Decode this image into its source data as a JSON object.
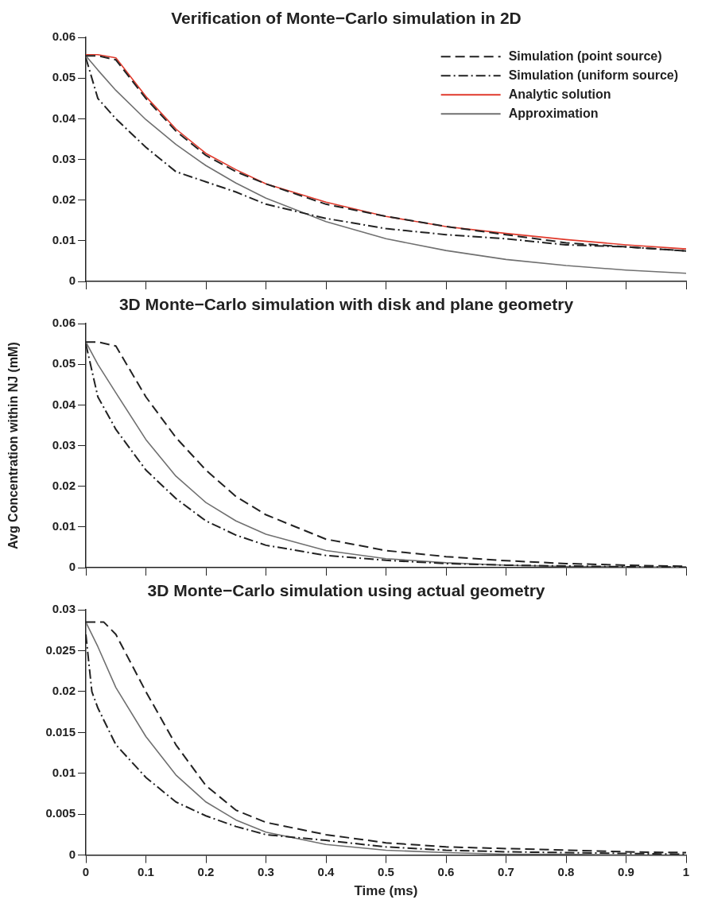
{
  "chart_data": [
    {
      "type": "line",
      "title": "Verification of Monte−Carlo simulation in 2D",
      "xlim": [
        0,
        1
      ],
      "xticks": [
        0,
        0.1,
        0.2,
        0.3,
        0.4,
        0.5,
        0.6,
        0.7,
        0.8,
        0.9,
        1
      ],
      "ylim": [
        0,
        0.06
      ],
      "yticks": [
        0,
        0.01,
        0.02,
        0.03,
        0.04,
        0.05,
        0.06
      ],
      "tick_labels": "y",
      "grid": false,
      "legend": "top right",
      "marker": "none",
      "series": [
        {
          "name": "Simulation (point source)",
          "color": "#222222",
          "line_style": "dashed",
          "x": [
            0,
            0.02,
            0.05,
            0.1,
            0.15,
            0.2,
            0.25,
            0.3,
            0.4,
            0.5,
            0.6,
            0.7,
            0.8,
            0.9,
            1
          ],
          "values": [
            0.0555,
            0.0555,
            0.0545,
            0.045,
            0.037,
            0.031,
            0.027,
            0.024,
            0.019,
            0.016,
            0.0135,
            0.0115,
            0.0095,
            0.0085,
            0.0075
          ]
        },
        {
          "name": "Simulation (uniform source)",
          "color": "#222222",
          "line_style": "dashdot",
          "x": [
            0,
            0.02,
            0.05,
            0.1,
            0.15,
            0.2,
            0.25,
            0.3,
            0.4,
            0.5,
            0.6,
            0.7,
            0.8,
            0.9,
            1
          ],
          "values": [
            0.055,
            0.045,
            0.04,
            0.033,
            0.027,
            0.0245,
            0.022,
            0.019,
            0.0155,
            0.013,
            0.0115,
            0.0105,
            0.009,
            0.0085,
            0.0075
          ]
        },
        {
          "name": "Analytic solution",
          "color": "#e0392b",
          "line_style": "solid",
          "x": [
            0,
            0.02,
            0.05,
            0.1,
            0.15,
            0.2,
            0.25,
            0.3,
            0.4,
            0.5,
            0.6,
            0.7,
            0.8,
            0.9,
            1
          ],
          "values": [
            0.0558,
            0.0558,
            0.055,
            0.0455,
            0.0375,
            0.0315,
            0.0275,
            0.024,
            0.0195,
            0.016,
            0.0135,
            0.0118,
            0.0103,
            0.009,
            0.008
          ]
        },
        {
          "name": "Approximation",
          "color": "#707070",
          "line_style": "solid",
          "x": [
            0,
            0.02,
            0.05,
            0.1,
            0.15,
            0.2,
            0.25,
            0.3,
            0.4,
            0.5,
            0.6,
            0.7,
            0.8,
            0.9,
            1
          ],
          "values": [
            0.0555,
            0.052,
            0.047,
            0.0398,
            0.0337,
            0.0285,
            0.0242,
            0.0205,
            0.0147,
            0.0105,
            0.0076,
            0.0054,
            0.0039,
            0.0028,
            0.002
          ]
        }
      ]
    },
    {
      "type": "line",
      "title": "3D Monte−Carlo simulation with disk and plane geometry",
      "ylabel": "Avg Concentration within NJ (mM)",
      "xlim": [
        0,
        1
      ],
      "xticks": [
        0,
        0.1,
        0.2,
        0.3,
        0.4,
        0.5,
        0.6,
        0.7,
        0.8,
        0.9,
        1
      ],
      "ylim": [
        0,
        0.06
      ],
      "yticks": [
        0,
        0.01,
        0.02,
        0.03,
        0.04,
        0.05,
        0.06
      ],
      "tick_labels": "y",
      "grid": false,
      "legend": false,
      "marker": "none",
      "series": [
        {
          "color": "#222222",
          "line_style": "dashed",
          "x": [
            0,
            0.02,
            0.05,
            0.1,
            0.15,
            0.2,
            0.25,
            0.3,
            0.4,
            0.5,
            0.6,
            0.7,
            0.8,
            0.9,
            1
          ],
          "values": [
            0.0555,
            0.0555,
            0.0545,
            0.042,
            0.032,
            0.024,
            0.0175,
            0.013,
            0.007,
            0.0042,
            0.0027,
            0.0017,
            0.001,
            0.0006,
            0.0003
          ]
        },
        {
          "color": "#222222",
          "line_style": "dashdot",
          "x": [
            0,
            0.02,
            0.05,
            0.1,
            0.15,
            0.2,
            0.25,
            0.3,
            0.4,
            0.5,
            0.6,
            0.7,
            0.8,
            0.9,
            1
          ],
          "values": [
            0.055,
            0.042,
            0.034,
            0.024,
            0.017,
            0.0115,
            0.008,
            0.0055,
            0.003,
            0.0018,
            0.001,
            0.0006,
            0.0004,
            0.0002,
            0.0001
          ]
        },
        {
          "color": "#707070",
          "line_style": "solid",
          "x": [
            0,
            0.02,
            0.05,
            0.1,
            0.15,
            0.2,
            0.25,
            0.3,
            0.4,
            0.5,
            0.6,
            0.7,
            0.8,
            0.9,
            1
          ],
          "values": [
            0.0555,
            0.05,
            0.043,
            0.0315,
            0.0225,
            0.016,
            0.0115,
            0.0082,
            0.0042,
            0.0022,
            0.0012,
            0.0006,
            0.0003,
            0.0002,
            0.0001
          ]
        }
      ]
    },
    {
      "type": "line",
      "title": "3D Monte−Carlo simulation using actual geometry",
      "xlabel": "Time (ms)",
      "xlim": [
        0,
        1
      ],
      "xticks": [
        0,
        0.1,
        0.2,
        0.3,
        0.4,
        0.5,
        0.6,
        0.7,
        0.8,
        0.9,
        1
      ],
      "ylim": [
        0,
        0.03
      ],
      "yticks": [
        0,
        0.005,
        0.01,
        0.015,
        0.02,
        0.025,
        0.03
      ],
      "grid": false,
      "legend": false,
      "marker": "none",
      "series": [
        {
          "color": "#222222",
          "line_style": "dashed",
          "x": [
            0,
            0.02,
            0.03,
            0.05,
            0.1,
            0.15,
            0.2,
            0.25,
            0.3,
            0.4,
            0.5,
            0.6,
            0.7,
            0.8,
            0.9,
            1
          ],
          "values": [
            0.0285,
            0.0285,
            0.0285,
            0.027,
            0.02,
            0.0135,
            0.0085,
            0.0055,
            0.004,
            0.0025,
            0.0015,
            0.001,
            0.0008,
            0.0006,
            0.0004,
            0.0003
          ]
        },
        {
          "color": "#222222",
          "line_style": "dashdot",
          "x": [
            0,
            0.01,
            0.02,
            0.05,
            0.1,
            0.15,
            0.2,
            0.25,
            0.3,
            0.4,
            0.5,
            0.6,
            0.7,
            0.8,
            0.9,
            1
          ],
          "values": [
            0.027,
            0.02,
            0.018,
            0.0135,
            0.0095,
            0.0065,
            0.0048,
            0.0035,
            0.0025,
            0.0018,
            0.001,
            0.0006,
            0.0004,
            0.0003,
            0.0002,
            0.0001
          ]
        },
        {
          "color": "#707070",
          "line_style": "solid",
          "x": [
            0,
            0.02,
            0.05,
            0.1,
            0.15,
            0.2,
            0.25,
            0.3,
            0.4,
            0.5,
            0.6,
            0.7,
            0.8,
            0.9,
            1
          ],
          "values": [
            0.0285,
            0.0255,
            0.0205,
            0.0145,
            0.0098,
            0.0065,
            0.0043,
            0.0028,
            0.0013,
            0.0006,
            0.0003,
            0.0001,
            0.0001,
            0,
            0
          ]
        }
      ]
    }
  ]
}
